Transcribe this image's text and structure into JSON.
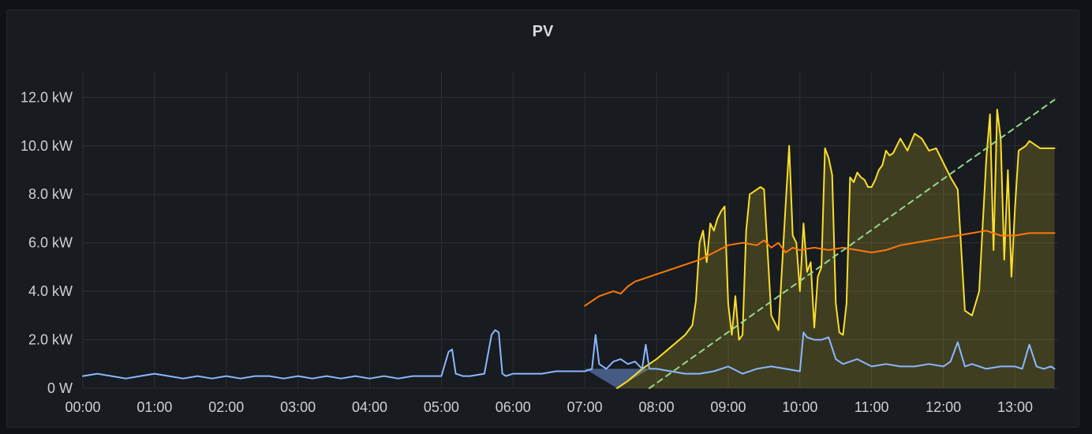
{
  "panel": {
    "title": "PV"
  },
  "colors": {
    "background": "#181b1f",
    "grid": "#2c2f35",
    "axis_text": "#cfd0d2"
  },
  "chart_data": {
    "type": "area",
    "title": "PV",
    "xlabel": "",
    "ylabel": "",
    "x_unit": "time of day (hours)",
    "xlim": [
      0,
      13.6
    ],
    "ylim": [
      0,
      12.5
    ],
    "x_ticks": [
      "00:00",
      "01:00",
      "02:00",
      "03:00",
      "04:00",
      "05:00",
      "06:00",
      "07:00",
      "08:00",
      "09:00",
      "10:00",
      "11:00",
      "12:00",
      "13:00"
    ],
    "y_ticks": [
      "0 W",
      "2.0 kW",
      "4.0 kW",
      "6.0 kW",
      "8.0 kW",
      "10.0 kW",
      "12.0 kW"
    ],
    "y_tick_values": [
      0,
      2,
      4,
      6,
      8,
      10,
      12
    ],
    "grid": true,
    "legend": "none",
    "series": [
      {
        "key": "pv-yellow",
        "color": "#fade2a",
        "fill": true,
        "x": [
          7.45,
          7.6,
          7.8,
          8.0,
          8.2,
          8.4,
          8.5,
          8.55,
          8.6,
          8.65,
          8.7,
          8.75,
          8.8,
          8.85,
          8.9,
          8.95,
          9.0,
          9.05,
          9.1,
          9.15,
          9.2,
          9.25,
          9.3,
          9.35,
          9.4,
          9.45,
          9.5,
          9.6,
          9.7,
          9.8,
          9.85,
          9.9,
          9.95,
          10.0,
          10.05,
          10.1,
          10.15,
          10.2,
          10.25,
          10.3,
          10.35,
          10.4,
          10.45,
          10.5,
          10.55,
          10.6,
          10.65,
          10.7,
          10.75,
          10.8,
          10.85,
          10.9,
          10.95,
          11.0,
          11.05,
          11.1,
          11.15,
          11.2,
          11.25,
          11.3,
          11.35,
          11.4,
          11.5,
          11.6,
          11.7,
          11.8,
          11.9,
          12.0,
          12.1,
          12.2,
          12.3,
          12.4,
          12.5,
          12.55,
          12.6,
          12.65,
          12.7,
          12.75,
          12.8,
          12.85,
          12.9,
          12.95,
          13.0,
          13.05,
          13.1,
          13.15,
          13.2,
          13.25,
          13.3,
          13.35,
          13.4,
          13.45,
          13.5,
          13.55
        ],
        "values": [
          0.0,
          0.3,
          0.8,
          1.2,
          1.7,
          2.2,
          2.6,
          3.6,
          6.0,
          6.5,
          5.2,
          6.8,
          6.5,
          7.0,
          7.3,
          7.5,
          3.5,
          2.2,
          3.8,
          2.0,
          2.2,
          6.5,
          8.0,
          8.1,
          8.2,
          8.3,
          8.2,
          3.0,
          2.4,
          7.5,
          10.0,
          6.3,
          6.0,
          4.0,
          6.8,
          4.8,
          5.2,
          2.5,
          4.6,
          5.0,
          9.9,
          9.5,
          8.8,
          3.5,
          2.3,
          2.2,
          3.5,
          8.7,
          8.5,
          8.9,
          8.7,
          8.6,
          8.3,
          8.3,
          8.6,
          9.0,
          9.2,
          9.8,
          9.6,
          9.7,
          10.0,
          10.3,
          9.8,
          10.5,
          10.3,
          9.8,
          9.9,
          9.3,
          8.7,
          8.2,
          3.2,
          3.0,
          4.0,
          6.8,
          9.5,
          11.3,
          5.7,
          11.5,
          10.3,
          5.3,
          9.0,
          4.6,
          7.5,
          9.8,
          9.9,
          10.0,
          10.2,
          10.1,
          10.0,
          9.9,
          9.9,
          9.9,
          9.9,
          9.9
        ]
      },
      {
        "key": "pv-orange",
        "color": "#ff780a",
        "fill": false,
        "x": [
          7.0,
          7.1,
          7.2,
          7.3,
          7.4,
          7.5,
          7.6,
          7.7,
          7.8,
          8.0,
          8.2,
          8.4,
          8.6,
          8.8,
          9.0,
          9.2,
          9.4,
          9.5,
          9.6,
          9.7,
          9.8,
          9.9,
          10.0,
          10.2,
          10.4,
          10.6,
          10.8,
          11.0,
          11.2,
          11.4,
          11.6,
          11.8,
          12.0,
          12.2,
          12.4,
          12.6,
          12.8,
          13.0,
          13.2,
          13.4,
          13.55
        ],
        "values": [
          3.4,
          3.6,
          3.8,
          3.9,
          4.0,
          3.9,
          4.2,
          4.4,
          4.5,
          4.7,
          4.9,
          5.1,
          5.3,
          5.6,
          5.9,
          6.0,
          5.9,
          6.1,
          5.8,
          6.0,
          5.6,
          5.8,
          5.7,
          5.8,
          5.7,
          5.8,
          5.7,
          5.6,
          5.7,
          5.9,
          6.0,
          6.1,
          6.2,
          6.3,
          6.4,
          6.5,
          6.3,
          6.3,
          6.4,
          6.4,
          6.4
        ]
      },
      {
        "key": "load-blue",
        "color": "#8ab8ff",
        "fill": false,
        "x": [
          0.0,
          0.2,
          0.4,
          0.6,
          0.8,
          1.0,
          1.2,
          1.4,
          1.6,
          1.8,
          2.0,
          2.2,
          2.4,
          2.6,
          2.8,
          3.0,
          3.2,
          3.4,
          3.6,
          3.8,
          4.0,
          4.2,
          4.4,
          4.6,
          4.8,
          5.0,
          5.1,
          5.15,
          5.2,
          5.3,
          5.4,
          5.6,
          5.7,
          5.75,
          5.8,
          5.85,
          5.9,
          6.0,
          6.2,
          6.4,
          6.6,
          6.8,
          7.0,
          7.1,
          7.15,
          7.2,
          7.3,
          7.4,
          7.5,
          7.6,
          7.7,
          7.8,
          7.85,
          7.9,
          8.0,
          8.2,
          8.4,
          8.6,
          8.8,
          9.0,
          9.2,
          9.4,
          9.6,
          9.8,
          10.0,
          10.05,
          10.1,
          10.2,
          10.3,
          10.4,
          10.5,
          10.6,
          10.8,
          11.0,
          11.2,
          11.4,
          11.6,
          11.8,
          12.0,
          12.1,
          12.2,
          12.3,
          12.4,
          12.6,
          12.8,
          13.0,
          13.1,
          13.2,
          13.3,
          13.4,
          13.5,
          13.55
        ],
        "values": [
          0.5,
          0.6,
          0.5,
          0.4,
          0.5,
          0.6,
          0.5,
          0.4,
          0.5,
          0.4,
          0.5,
          0.4,
          0.5,
          0.5,
          0.4,
          0.5,
          0.4,
          0.5,
          0.4,
          0.5,
          0.4,
          0.5,
          0.4,
          0.5,
          0.5,
          0.5,
          1.5,
          1.6,
          0.6,
          0.5,
          0.5,
          0.6,
          2.2,
          2.4,
          2.3,
          0.6,
          0.5,
          0.6,
          0.6,
          0.6,
          0.7,
          0.7,
          0.7,
          0.8,
          2.2,
          1.0,
          0.8,
          1.1,
          1.2,
          1.0,
          1.1,
          0.8,
          1.8,
          0.8,
          0.8,
          0.7,
          0.6,
          0.6,
          0.7,
          0.9,
          0.6,
          0.8,
          0.9,
          0.8,
          0.7,
          2.3,
          2.1,
          2.0,
          2.0,
          2.1,
          1.2,
          1.0,
          1.2,
          0.9,
          1.0,
          0.9,
          0.9,
          1.0,
          0.9,
          1.1,
          1.9,
          0.9,
          1.0,
          0.8,
          0.9,
          0.9,
          0.8,
          1.8,
          0.9,
          0.8,
          0.9,
          0.8
        ]
      },
      {
        "key": "forecast-green",
        "color": "#96d98d",
        "fill": false,
        "dashed": true,
        "x": [
          7.9,
          13.55
        ],
        "values": [
          0.0,
          11.9
        ]
      }
    ],
    "annotations": [
      {
        "key": "blue-shaded-region",
        "color": "#6b8fd6",
        "x": [
          7.0,
          7.45,
          7.9
        ],
        "values": [
          0.8,
          0.0,
          0.8
        ]
      }
    ]
  }
}
